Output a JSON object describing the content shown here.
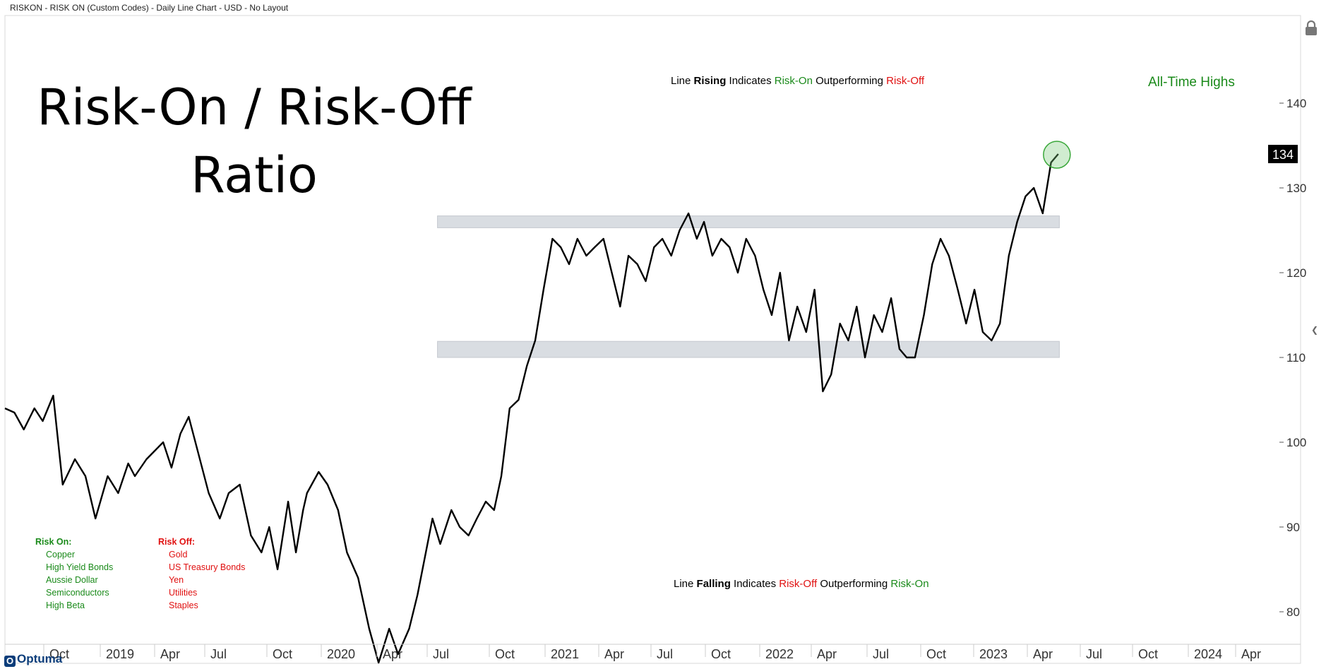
{
  "header": {
    "text": "RISKON - RISK ON (Custom Codes) - Daily Line Chart - USD - No Layout"
  },
  "title": {
    "line1": "Risk-On / Risk-Off",
    "line2": "Ratio"
  },
  "annotations": {
    "top": {
      "a": "Line",
      "b": "Rising",
      "c": "Indicates",
      "d": "Risk-On",
      "e": "Outperforming",
      "f": "Risk-Off"
    },
    "bottom": {
      "a": "Line",
      "b": "Falling",
      "c": "Indicates",
      "d": "Risk-Off",
      "e": "Outperforming",
      "f": "Risk-On"
    },
    "all_time_highs": "All-Time Highs"
  },
  "legend": {
    "risk_on": {
      "title": "Risk On:",
      "items": [
        "Copper",
        "High Yield Bonds",
        "Aussie Dollar",
        "Semiconductors",
        "High Beta"
      ]
    },
    "risk_off": {
      "title": "Risk Off:",
      "items": [
        "Gold",
        "US Treasury Bonds",
        "Yen",
        "Utilities",
        "Staples"
      ]
    }
  },
  "logo": {
    "text": "Optuma"
  },
  "colors": {
    "line": "#000000",
    "band": "#d9dde2",
    "green": "#1a8a1a",
    "red": "#e01010",
    "last_label_bg": "#000000"
  },
  "chart_data": {
    "type": "line",
    "title": "Risk-On / Risk-Off Ratio",
    "ylim": [
      72,
      142
    ],
    "y_ticks": [
      80,
      90,
      100,
      110,
      120,
      130,
      140
    ],
    "x_ticks": [
      "Oct",
      "2019",
      "Apr",
      "Jul",
      "Oct",
      "2020",
      "Apr",
      "Jul",
      "Oct",
      "2021",
      "Apr",
      "Jul",
      "Oct",
      "2022",
      "Apr",
      "Jul",
      "Oct",
      "2023",
      "Apr",
      "Jul",
      "Oct",
      "2024",
      "Apr"
    ],
    "last_value": 134,
    "bands": [
      {
        "from_date": "2020-11-15",
        "to_date": "2023-12-10",
        "low": 125.3,
        "high": 126.7
      },
      {
        "from_date": "2020-11-15",
        "to_date": "2023-12-10",
        "low": 110.0,
        "high": 111.9
      }
    ],
    "highlight": {
      "date": "2023-12-08",
      "value": 134,
      "label": "All-Time Highs"
    },
    "series": [
      {
        "x": [
          "2018-09-28",
          "2018-10-15",
          "2018-11-01",
          "2018-11-20",
          "2018-12-05",
          "2018-12-24",
          "2019-01-10",
          "2019-02-01",
          "2019-02-20",
          "2019-03-10",
          "2019-04-01",
          "2019-04-20",
          "2019-05-08",
          "2019-05-20",
          "2019-06-10",
          "2019-06-25",
          "2019-07-10",
          "2019-07-25",
          "2019-08-10",
          "2019-08-25",
          "2019-09-10",
          "2019-09-30",
          "2019-10-20",
          "2019-11-05",
          "2019-11-25",
          "2019-12-15",
          "2020-01-03",
          "2020-01-17",
          "2020-02-01",
          "2020-02-20",
          "2020-03-05",
          "2020-03-18",
          "2020-03-25",
          "2020-04-15",
          "2020-05-01",
          "2020-05-20",
          "2020-06-05",
          "2020-06-25",
          "2020-07-15",
          "2020-08-01",
          "2020-08-20",
          "2020-09-05",
          "2020-09-25",
          "2020-10-10",
          "2020-10-25",
          "2020-11-06",
          "2020-11-20",
          "2020-12-10",
          "2020-12-25",
          "2021-01-10",
          "2021-01-25",
          "2021-02-10",
          "2021-02-25",
          "2021-03-10",
          "2021-03-25",
          "2021-04-10",
          "2021-04-25",
          "2021-05-10",
          "2021-05-25",
          "2021-06-10",
          "2021-06-25",
          "2021-07-10",
          "2021-07-25",
          "2021-08-10",
          "2021-08-25",
          "2021-09-10",
          "2021-09-25",
          "2021-10-10",
          "2021-10-25",
          "2021-11-10",
          "2021-11-25",
          "2021-12-10",
          "2021-12-25",
          "2022-01-10",
          "2022-01-25",
          "2022-02-10",
          "2022-02-25",
          "2022-03-10",
          "2022-03-25",
          "2022-04-10",
          "2022-04-25",
          "2022-05-10",
          "2022-05-25",
          "2022-06-10",
          "2022-06-25",
          "2022-07-10",
          "2022-07-25",
          "2022-08-10",
          "2022-08-25",
          "2022-09-10",
          "2022-09-25",
          "2022-10-10",
          "2022-10-25",
          "2022-11-10",
          "2022-11-25",
          "2022-12-10",
          "2022-12-25",
          "2023-01-10",
          "2023-01-25",
          "2023-02-10",
          "2023-02-25",
          "2023-03-10",
          "2023-03-25",
          "2023-04-10",
          "2023-04-25",
          "2023-05-10",
          "2023-05-25",
          "2023-06-10",
          "2023-06-25",
          "2023-07-10",
          "2023-07-25",
          "2023-08-10",
          "2023-08-25",
          "2023-09-10",
          "2023-09-25",
          "2023-10-10",
          "2023-10-25",
          "2023-11-10",
          "2023-11-25",
          "2023-12-08"
        ],
        "y": [
          104,
          103.5,
          101.5,
          104,
          102.5,
          105.5,
          95,
          98,
          96,
          91,
          96,
          94,
          97.5,
          96,
          98,
          99,
          100,
          97,
          101,
          103,
          99,
          94,
          91,
          94,
          95,
          89,
          87,
          90,
          85,
          93,
          87,
          92,
          94,
          96.5,
          95,
          92,
          87,
          84,
          78,
          74,
          78,
          75,
          78,
          82,
          87,
          91,
          88,
          92,
          90,
          89,
          91,
          93,
          92,
          96,
          104,
          105,
          109,
          112,
          118,
          124,
          123,
          121,
          124,
          122,
          123,
          124,
          120,
          116,
          122,
          121,
          119,
          123,
          124,
          122,
          125,
          127,
          124,
          126,
          122,
          124,
          123,
          120,
          124,
          122,
          118,
          115,
          120,
          112,
          116,
          113,
          118,
          106,
          108,
          114,
          112,
          116,
          110,
          115,
          113,
          117,
          111,
          110,
          110,
          115,
          121,
          124,
          122,
          118,
          114,
          118,
          113,
          112,
          114,
          122,
          126,
          129,
          130,
          127,
          133,
          134
        ]
      }
    ]
  }
}
